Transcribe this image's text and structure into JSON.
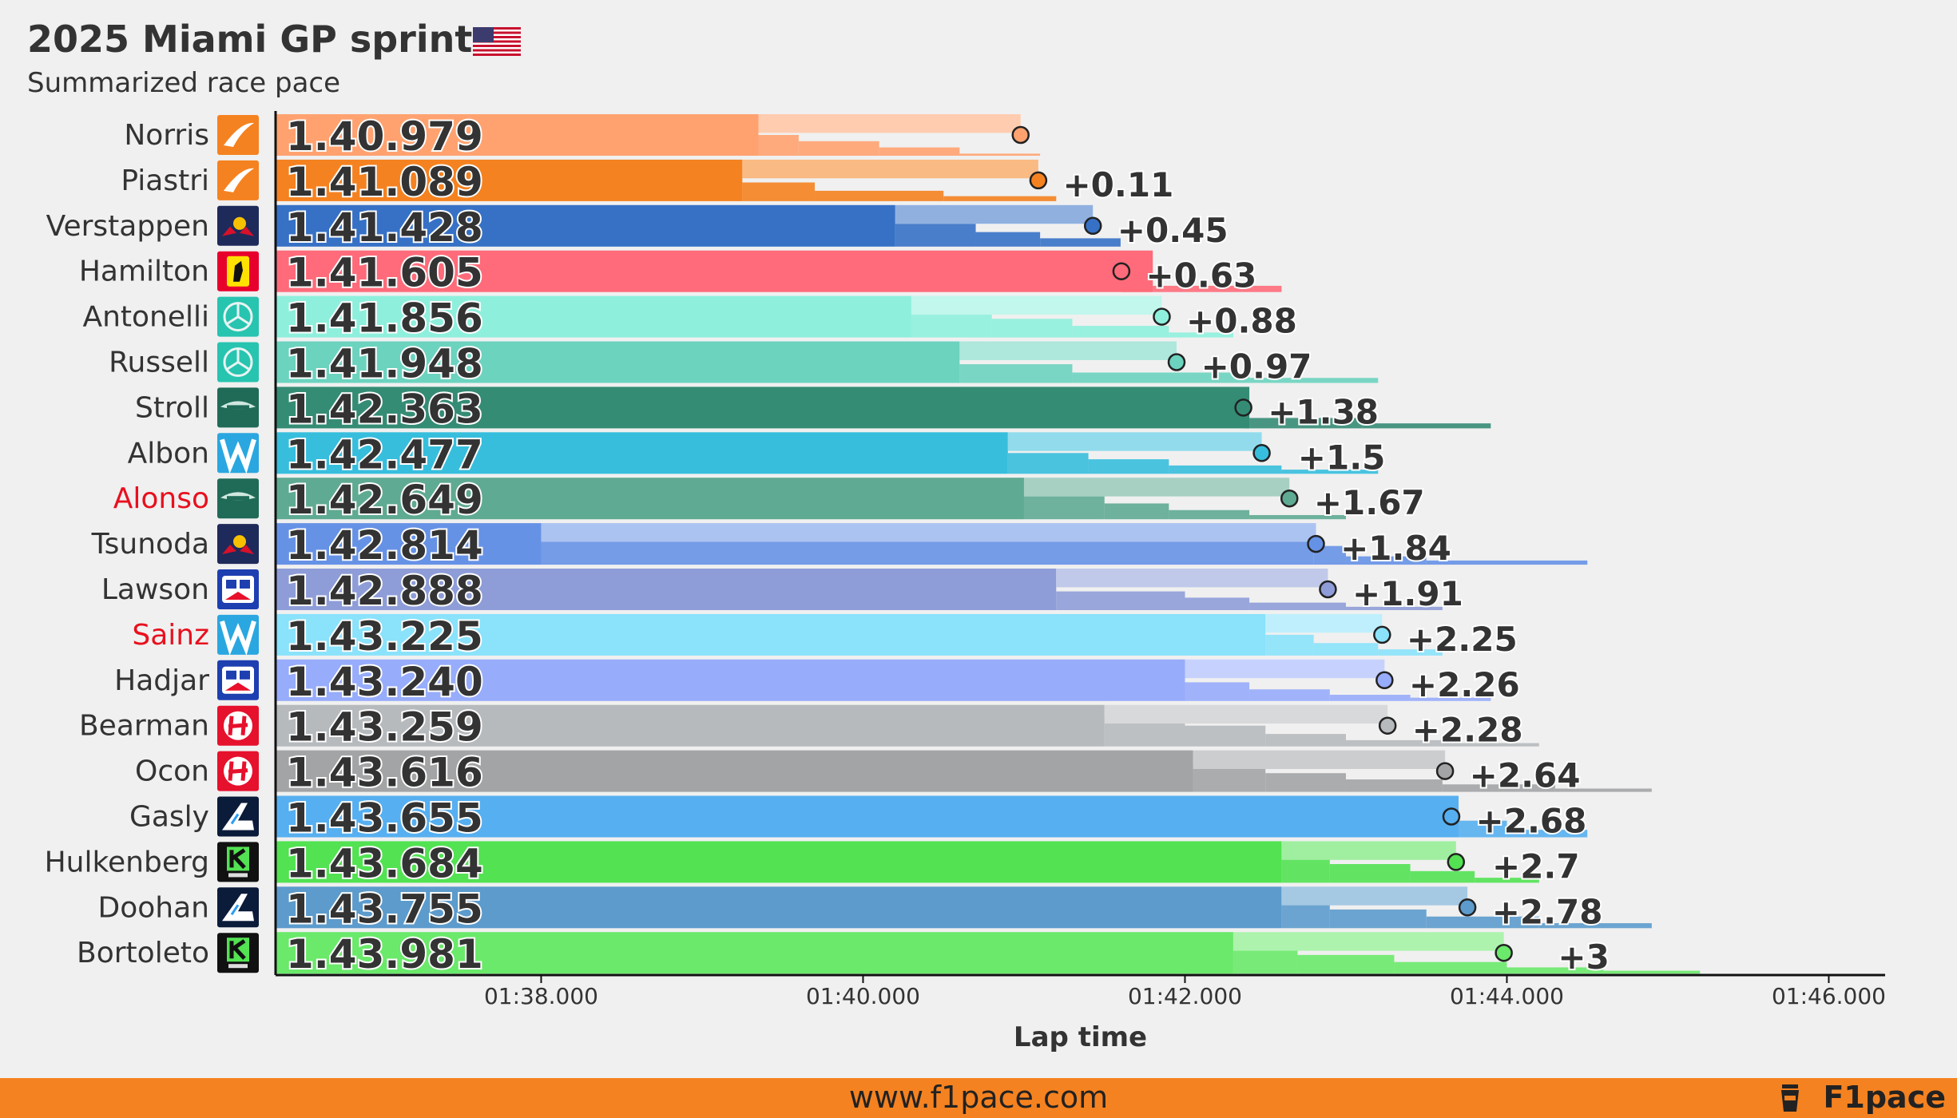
{
  "header": {
    "title": "2025 Miami GP sprint",
    "subtitle": "Summarized race pace"
  },
  "footer": {
    "url": "www.f1pace.com",
    "brand": "F1pace"
  },
  "chart_data": {
    "type": "bar",
    "title": "2025 Miami GP sprint",
    "subtitle": "Summarized race pace",
    "xlabel": "Lap time",
    "ylabel": "",
    "x_range_s": [
      96.35,
      106.35
    ],
    "x_ticks": [
      98,
      100,
      102,
      104,
      106
    ],
    "x_tick_labels": [
      "01:38.000",
      "01:40.000",
      "01:42.000",
      "01:44.000",
      "01:46.000"
    ],
    "grid": false,
    "drivers": [
      {
        "name": "Norris",
        "team_icon": "mclaren-logo",
        "pace": "1.40.979",
        "pace_s": 100.979,
        "gap": "",
        "color": "#ffa270",
        "marker_s": 100.979,
        "steps": [
          [
            99.35,
            0.3
          ],
          [
            99.6,
            0.5
          ],
          [
            100.1,
            0.65
          ],
          [
            100.6,
            0.8
          ],
          [
            101.1,
            0.95
          ],
          [
            101.45,
            1
          ]
        ],
        "alonso": false
      },
      {
        "name": "Piastri",
        "team_icon": "mclaren-logo",
        "pace": "1.41.089",
        "pace_s": 101.089,
        "gap": "+0.11",
        "color": "#f58220",
        "marker_s": 101.089,
        "steps": [
          [
            99.25,
            0.3
          ],
          [
            99.7,
            0.55
          ],
          [
            100.5,
            0.75
          ],
          [
            101.2,
            0.88
          ],
          [
            101.8,
            1
          ]
        ],
        "alonso": false
      },
      {
        "name": "Verstappen",
        "team_icon": "redbull-logo",
        "pace": "1.41.428",
        "pace_s": 101.428,
        "gap": "+0.45",
        "color": "#3671c6",
        "marker_s": 101.428,
        "steps": [
          [
            100.2,
            0.2
          ],
          [
            100.7,
            0.45
          ],
          [
            101.1,
            0.65
          ],
          [
            101.6,
            0.8
          ],
          [
            101.95,
            1
          ]
        ],
        "alonso": false
      },
      {
        "name": "Hamilton",
        "team_icon": "ferrari-logo",
        "pace": "1.41.605",
        "pace_s": 101.605,
        "gap": "+0.63",
        "color": "#ff6b7a",
        "marker_s": 101.605,
        "steps": [
          [
            101.8,
            0.7
          ],
          [
            102.6,
            0.85
          ],
          [
            103.5,
            1
          ]
        ],
        "alonso": false
      },
      {
        "name": "Antonelli",
        "team_icon": "mercedes-logo",
        "pace": "1.41.856",
        "pace_s": 101.856,
        "gap": "+0.88",
        "color": "#8ef0dc",
        "marker_s": 101.856,
        "steps": [
          [
            100.3,
            0.15
          ],
          [
            100.8,
            0.35
          ],
          [
            101.3,
            0.55
          ],
          [
            101.9,
            0.72
          ],
          [
            102.3,
            0.88
          ],
          [
            102.75,
            1
          ]
        ],
        "alonso": false
      },
      {
        "name": "Russell",
        "team_icon": "mercedes-logo",
        "pace": "1.41.948",
        "pace_s": 101.948,
        "gap": "+0.97",
        "color": "#6cd3bf",
        "marker_s": 101.948,
        "steps": [
          [
            100.6,
            0.3
          ],
          [
            101.3,
            0.55
          ],
          [
            102.4,
            0.75
          ],
          [
            103.2,
            0.88
          ],
          [
            103.4,
            1
          ]
        ],
        "alonso": false
      },
      {
        "name": "Stroll",
        "team_icon": "astonmartin-logo",
        "pace": "1.42.363",
        "pace_s": 102.363,
        "gap": "+1.38",
        "color": "#358c75",
        "marker_s": 102.363,
        "steps": [
          [
            102.4,
            0.5
          ],
          [
            103.1,
            0.75
          ],
          [
            103.9,
            0.88
          ],
          [
            104.35,
            1
          ]
        ],
        "alonso": false
      },
      {
        "name": "Albon",
        "team_icon": "williams-logo",
        "pace": "1.42.477",
        "pace_s": 102.477,
        "gap": "+1.5",
        "color": "#37bedd",
        "marker_s": 102.477,
        "steps": [
          [
            100.9,
            0.3
          ],
          [
            101.4,
            0.5
          ],
          [
            101.9,
            0.65
          ],
          [
            102.6,
            0.8
          ],
          [
            103.2,
            0.9
          ],
          [
            103.5,
            1
          ]
        ],
        "alonso": false
      },
      {
        "name": "Alonso",
        "team_icon": "astonmartin-logo",
        "pace": "1.42.649",
        "pace_s": 102.649,
        "gap": "+1.67",
        "color": "#5faa92",
        "marker_s": 102.649,
        "steps": [
          [
            101.0,
            0.25
          ],
          [
            101.5,
            0.45
          ],
          [
            101.9,
            0.62
          ],
          [
            102.4,
            0.78
          ],
          [
            103.0,
            0.9
          ],
          [
            103.7,
            1
          ]
        ],
        "alonso": true
      },
      {
        "name": "Tsunoda",
        "team_icon": "redbull-logo",
        "pace": "1.42.814",
        "pace_s": 102.814,
        "gap": "+1.84",
        "color": "#6692e6",
        "marker_s": 102.814,
        "steps": [
          [
            98.0,
            0.05
          ],
          [
            102.8,
            0.3
          ],
          [
            103.0,
            0.55
          ],
          [
            103.5,
            0.8
          ],
          [
            104.5,
            0.9
          ],
          [
            105.2,
            1
          ]
        ],
        "alonso": false
      },
      {
        "name": "Lawson",
        "team_icon": "racingbulls-logo",
        "pace": "1.42.888",
        "pace_s": 102.888,
        "gap": "+1.91",
        "color": "#8e9dd8",
        "marker_s": 102.888,
        "steps": [
          [
            101.2,
            0.3
          ],
          [
            102.0,
            0.55
          ],
          [
            102.4,
            0.7
          ],
          [
            103.0,
            0.82
          ],
          [
            103.6,
            0.92
          ],
          [
            104.0,
            1
          ]
        ],
        "alonso": false
      },
      {
        "name": "Sainz",
        "team_icon": "williams-logo",
        "pace": "1.43.225",
        "pace_s": 103.225,
        "gap": "+2.25",
        "color": "#8ae2fb",
        "marker_s": 103.225,
        "steps": [
          [
            102.5,
            0.3
          ],
          [
            102.8,
            0.5
          ],
          [
            103.2,
            0.7
          ],
          [
            103.6,
            0.85
          ],
          [
            103.8,
            1
          ]
        ],
        "alonso": true
      },
      {
        "name": "Hadjar",
        "team_icon": "racingbulls-logo",
        "pace": "1.43.240",
        "pace_s": 103.24,
        "gap": "+2.26",
        "color": "#97acfb",
        "marker_s": 103.24,
        "steps": [
          [
            102.0,
            0.3
          ],
          [
            102.4,
            0.55
          ],
          [
            102.9,
            0.72
          ],
          [
            103.4,
            0.85
          ],
          [
            103.9,
            0.92
          ],
          [
            104.45,
            1
          ]
        ],
        "alonso": false
      },
      {
        "name": "Bearman",
        "team_icon": "haas-logo",
        "pace": "1.43.259",
        "pace_s": 103.259,
        "gap": "+2.28",
        "color": "#b6babd",
        "marker_s": 103.259,
        "steps": [
          [
            101.5,
            0.1
          ],
          [
            102.0,
            0.3
          ],
          [
            102.5,
            0.5
          ],
          [
            103.0,
            0.7
          ],
          [
            103.6,
            0.85
          ],
          [
            104.2,
            0.92
          ],
          [
            104.95,
            1
          ]
        ],
        "alonso": false
      },
      {
        "name": "Ocon",
        "team_icon": "haas-logo",
        "pace": "1.43.616",
        "pace_s": 103.616,
        "gap": "+2.64",
        "color": "#a3a4a6",
        "marker_s": 103.616,
        "steps": [
          [
            102.05,
            0.1
          ],
          [
            102.5,
            0.35
          ],
          [
            103.0,
            0.55
          ],
          [
            103.6,
            0.7
          ],
          [
            104.3,
            0.82
          ],
          [
            104.9,
            0.92
          ],
          [
            105.35,
            1
          ]
        ],
        "alonso": false
      },
      {
        "name": "Gasly",
        "team_icon": "alpine-logo",
        "pace": "1.43.655",
        "pace_s": 103.655,
        "gap": "+2.68",
        "color": "#56aff0",
        "marker_s": 103.655,
        "steps": [
          [
            103.7,
            0.3
          ],
          [
            104.0,
            0.6
          ],
          [
            104.5,
            0.82
          ],
          [
            104.75,
            1
          ]
        ],
        "alonso": false
      },
      {
        "name": "Hulkenberg",
        "team_icon": "sauber-logo",
        "pace": "1.43.684",
        "pace_s": 103.684,
        "gap": "+2.7",
        "color": "#52e252",
        "marker_s": 103.684,
        "steps": [
          [
            102.6,
            0.15
          ],
          [
            102.9,
            0.35
          ],
          [
            103.4,
            0.55
          ],
          [
            103.8,
            0.72
          ],
          [
            104.2,
            0.88
          ],
          [
            104.5,
            1
          ]
        ],
        "alonso": false
      },
      {
        "name": "Doohan",
        "team_icon": "alpine-logo",
        "pace": "1.43.755",
        "pace_s": 103.755,
        "gap": "+2.78",
        "color": "#5c9bcc",
        "marker_s": 103.755,
        "steps": [
          [
            102.6,
            0.15
          ],
          [
            102.9,
            0.35
          ],
          [
            103.5,
            0.55
          ],
          [
            104.2,
            0.72
          ],
          [
            104.9,
            0.88
          ],
          [
            105.25,
            1
          ]
        ],
        "alonso": false
      },
      {
        "name": "Bortoleto",
        "team_icon": "sauber-logo",
        "pace": "1.43.981",
        "pace_s": 103.981,
        "gap": "+3",
        "color": "#6ae96a",
        "marker_s": 103.981,
        "steps": [
          [
            102.3,
            0.15
          ],
          [
            102.7,
            0.35
          ],
          [
            103.3,
            0.55
          ],
          [
            104.0,
            0.72
          ],
          [
            104.6,
            0.85
          ],
          [
            105.2,
            0.93
          ],
          [
            106.25,
            1
          ]
        ],
        "alonso": false
      }
    ]
  }
}
